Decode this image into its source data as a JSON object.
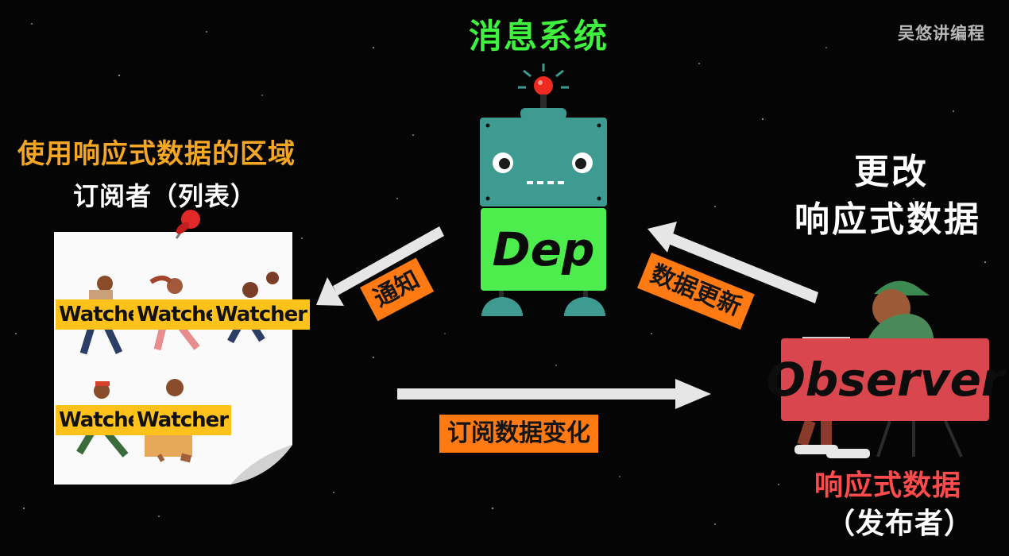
{
  "watermark": "吴悠讲编程",
  "message_system": {
    "title": "消息系统",
    "dep_label": "Dep"
  },
  "subscriber_area": {
    "title": "使用响应式数据的区域",
    "subtitle": "订阅者（列表）",
    "watchers": [
      "Watcher",
      "Watcher",
      "Watcher",
      "Watcher",
      "Watcher"
    ]
  },
  "publisher": {
    "change_line1": "更改",
    "change_line2": "响应式数据",
    "observer_label": "Observer",
    "caption_line1": "响应式数据",
    "caption_line2": "（发布者）"
  },
  "arrows": {
    "notify": "通知",
    "data_update": "数据更新",
    "subscribe_change": "订阅数据变化"
  },
  "colors": {
    "background": "#050506",
    "message_title": "#3ef23e",
    "area_title": "#f5a623",
    "tag_orange": "#ff7a12",
    "dep_green": "#4ded4d",
    "robot_teal": "#3e9b91",
    "observer_red": "#d9464e",
    "watcher_yellow": "#ffc21a",
    "publisher_caption": "#ff4b4b",
    "arrow": "#e6e6e6"
  }
}
